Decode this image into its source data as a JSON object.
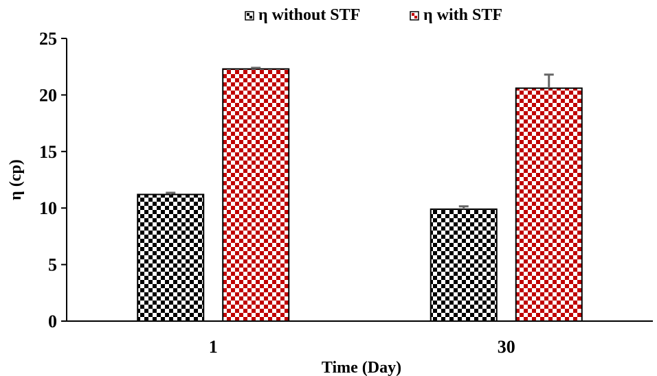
{
  "chart_data": {
    "type": "bar",
    "categories": [
      "1",
      "30"
    ],
    "series": [
      {
        "name": "η without STF",
        "values": [
          11.2,
          9.9
        ],
        "errors": [
          0.15,
          0.25
        ],
        "color": "#000000"
      },
      {
        "name": "η with STF",
        "values": [
          22.3,
          20.6
        ],
        "errors": [
          0.1,
          1.2
        ],
        "color": "#c00000"
      }
    ],
    "xlabel": "Time (Day)",
    "ylabel": "η (cp)",
    "ylim": [
      0,
      25
    ],
    "yticks": [
      0,
      5,
      10,
      15,
      20,
      25
    ],
    "grid": false,
    "legend": "top-center",
    "pattern": "checkerboard"
  }
}
